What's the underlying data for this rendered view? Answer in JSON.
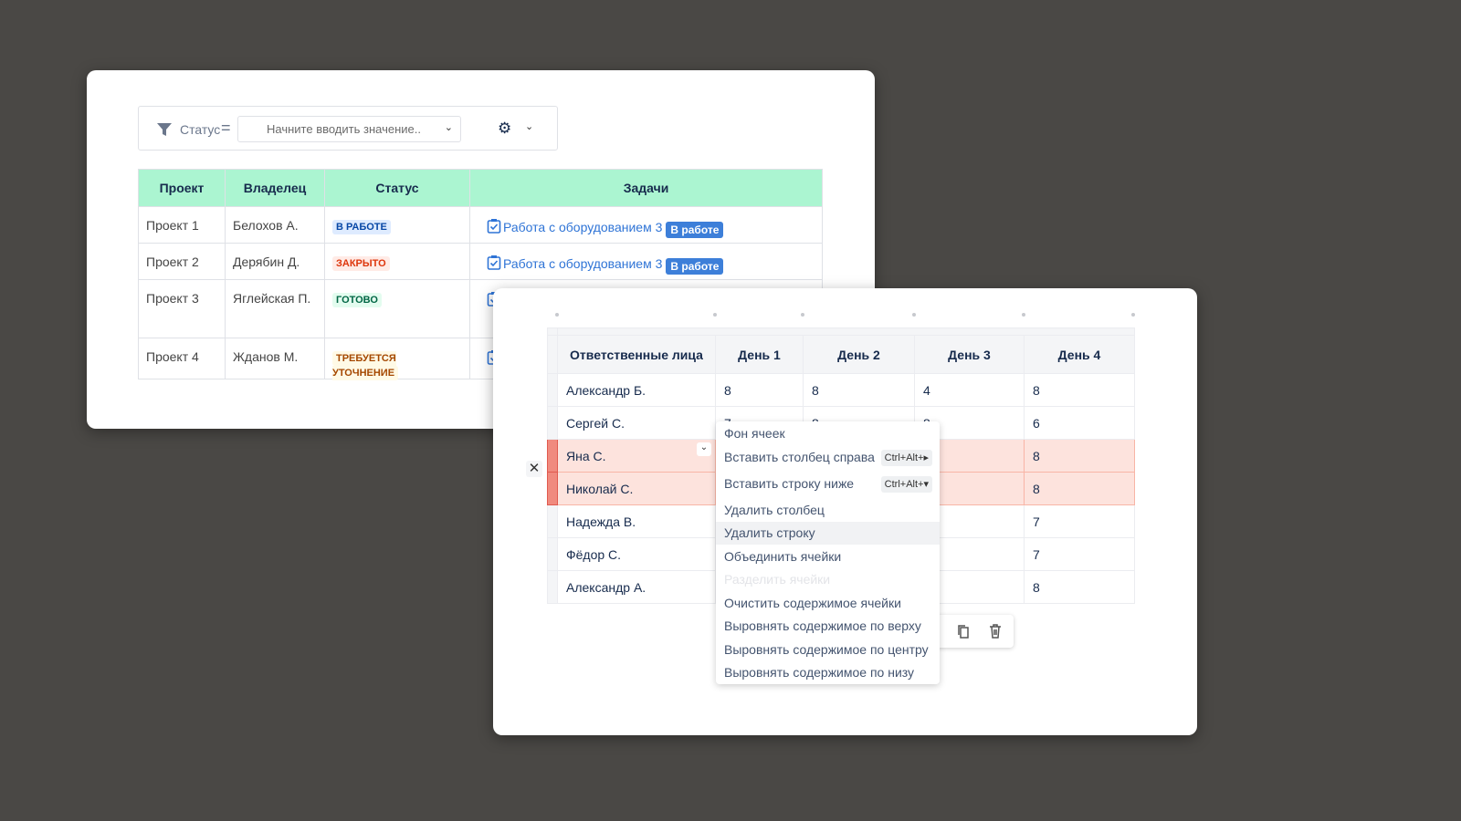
{
  "filter": {
    "field_label": "Статус",
    "operator": "=",
    "placeholder": "Начните вводить значение.."
  },
  "projects_table": {
    "headers": [
      "Проект",
      "Владелец",
      "Статус",
      "Задачи"
    ],
    "rows": [
      {
        "project": "Проект 1",
        "owner": "Белохов А.",
        "status": "В РАБОТЕ",
        "status_color": "#0747a6",
        "status_bg": "#deebff",
        "task": "Работа с оборудованием 3",
        "task_status": "В работе"
      },
      {
        "project": "Проект 2",
        "owner": "Дерябин Д.",
        "status": "ЗАКРЫТО",
        "status_color": "#de350b",
        "status_bg": "#ffebe6",
        "task": "Работа с оборудованием 3",
        "task_status": "В работе"
      },
      {
        "project": "Проект 3",
        "owner": "Яглейская П.",
        "status": "ГОТОВО",
        "status_color": "#006644",
        "status_bg": "#e3fcef",
        "task": "",
        "task_status": ""
      },
      {
        "project": "Проект 4",
        "owner": "Жданов М.",
        "status": "ТРЕБУЕТСЯ УТОЧНЕНИЕ",
        "status_color": "#a54800",
        "status_bg": "#fffae6",
        "task": "",
        "task_status": ""
      }
    ]
  },
  "hours_table": {
    "headers": [
      "Ответственные лица",
      "День 1",
      "День 2",
      "День 3",
      "День 4"
    ],
    "rows": [
      {
        "name": "Александр Б.",
        "d": [
          "8",
          "8",
          "4",
          "8"
        ]
      },
      {
        "name": "Сергей С.",
        "d": [
          "7",
          "8",
          "8",
          "6"
        ]
      },
      {
        "name": "Яна С.",
        "d": [
          "",
          "",
          "",
          "8"
        ],
        "selected": true
      },
      {
        "name": "Николай С.",
        "d": [
          "",
          "",
          "",
          "8"
        ],
        "selected": true
      },
      {
        "name": "Надежда В.",
        "d": [
          "",
          "",
          "",
          "7"
        ]
      },
      {
        "name": "Фёдор С.",
        "d": [
          "",
          "",
          "",
          "7"
        ]
      },
      {
        "name": "Александр А.",
        "d": [
          "",
          "",
          "",
          "8"
        ]
      }
    ]
  },
  "context_menu": {
    "items": [
      {
        "label": "Фон ячеек"
      },
      {
        "label": "Вставить столбец справа",
        "shortcut": "Ctrl+Alt+▸"
      },
      {
        "label": "Вставить строку ниже",
        "shortcut": "Ctrl+Alt+▾"
      },
      {
        "label": "Удалить столбец"
      },
      {
        "label": "Удалить строку",
        "hovered": true
      },
      {
        "label": "Объединить ячейки"
      },
      {
        "label": "Разделить ячейки",
        "disabled": true
      },
      {
        "label": "Очистить содержимое ячейки"
      },
      {
        "label": "Выровнять содержимое по верху"
      },
      {
        "label": "Выровнять содержимое по центру"
      },
      {
        "label": "Выровнять содержимое по низу"
      }
    ]
  }
}
